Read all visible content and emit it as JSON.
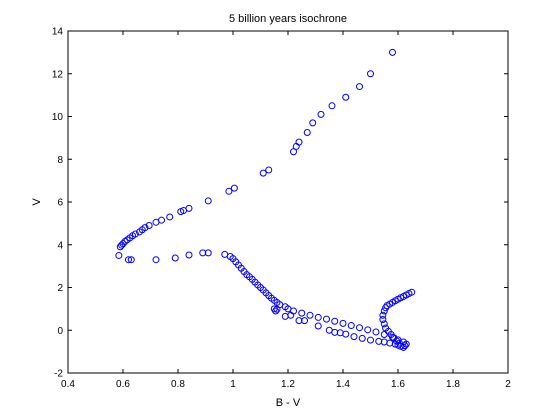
{
  "chart_data": {
    "type": "scatter",
    "title": "5 billion years isochrone",
    "xlabel": "B - V",
    "ylabel": "V",
    "xlim": [
      0.4,
      2
    ],
    "ylim": [
      -2,
      14
    ],
    "xticks": [
      0.4,
      0.6,
      0.8,
      1,
      1.2,
      1.4,
      1.6,
      1.8,
      2
    ],
    "yticks": [
      -2,
      0,
      2,
      4,
      6,
      8,
      10,
      12,
      14
    ],
    "xtick_labels": [
      "0.4",
      "0.6",
      "0.8",
      "1",
      "1.2",
      "1.4",
      "1.6",
      "1.8",
      "2"
    ],
    "ytick_labels": [
      "-2",
      "0",
      "2",
      "4",
      "6",
      "8",
      "10",
      "12",
      "14"
    ],
    "grid": false,
    "marker": "open-circle",
    "marker_color": "#0000ff",
    "series": [
      {
        "points": [
          [
            1.58,
            13.0
          ],
          [
            1.5,
            12.0
          ],
          [
            1.46,
            11.4
          ],
          [
            1.41,
            10.9
          ],
          [
            1.36,
            10.5
          ],
          [
            1.32,
            10.1
          ],
          [
            1.29,
            9.7
          ],
          [
            1.27,
            9.25
          ],
          [
            1.24,
            8.8
          ],
          [
            1.23,
            8.6
          ],
          [
            1.22,
            8.35
          ],
          [
            1.13,
            7.5
          ],
          [
            1.11,
            7.35
          ],
          [
            1.005,
            6.65
          ],
          [
            0.985,
            6.5
          ],
          [
            0.91,
            6.05
          ],
          [
            0.84,
            5.7
          ],
          [
            0.82,
            5.6
          ],
          [
            0.81,
            5.55
          ],
          [
            0.77,
            5.3
          ],
          [
            0.74,
            5.15
          ],
          [
            0.72,
            5.05
          ],
          [
            0.695,
            4.9
          ],
          [
            0.68,
            4.8
          ],
          [
            0.67,
            4.7
          ],
          [
            0.66,
            4.6
          ],
          [
            0.645,
            4.5
          ],
          [
            0.635,
            4.42
          ],
          [
            0.625,
            4.32
          ],
          [
            0.615,
            4.23
          ],
          [
            0.607,
            4.15
          ],
          [
            0.6,
            4.05
          ],
          [
            0.595,
            3.98
          ],
          [
            0.59,
            3.9
          ],
          [
            0.585,
            3.5
          ],
          [
            0.62,
            3.3
          ],
          [
            0.63,
            3.3
          ],
          [
            0.72,
            3.3
          ],
          [
            0.79,
            3.38
          ],
          [
            0.84,
            3.52
          ],
          [
            0.89,
            3.62
          ],
          [
            0.91,
            3.62
          ],
          [
            0.97,
            3.55
          ],
          [
            0.99,
            3.45
          ],
          [
            1.0,
            3.35
          ],
          [
            1.01,
            3.2
          ],
          [
            1.02,
            3.05
          ],
          [
            1.03,
            2.9
          ],
          [
            1.04,
            2.75
          ],
          [
            1.05,
            2.6
          ],
          [
            1.06,
            2.5
          ],
          [
            1.07,
            2.38
          ],
          [
            1.08,
            2.25
          ],
          [
            1.09,
            2.12
          ],
          [
            1.1,
            2.0
          ],
          [
            1.11,
            1.88
          ],
          [
            1.12,
            1.75
          ],
          [
            1.13,
            1.62
          ],
          [
            1.14,
            1.5
          ],
          [
            1.15,
            1.4
          ],
          [
            1.16,
            1.3
          ],
          [
            1.17,
            1.2
          ],
          [
            1.19,
            1.1
          ],
          [
            1.2,
            1.0
          ],
          [
            1.22,
            0.9
          ],
          [
            1.25,
            0.8
          ],
          [
            1.28,
            0.7
          ],
          [
            1.31,
            0.6
          ],
          [
            1.34,
            0.52
          ],
          [
            1.37,
            0.42
          ],
          [
            1.4,
            0.32
          ],
          [
            1.43,
            0.22
          ],
          [
            1.46,
            0.12
          ],
          [
            1.49,
            0.02
          ],
          [
            1.52,
            -0.08
          ],
          [
            1.55,
            -0.2
          ],
          [
            1.58,
            -0.32
          ],
          [
            1.6,
            -0.45
          ],
          [
            1.62,
            -0.55
          ],
          [
            1.63,
            -0.65
          ],
          [
            1.625,
            -0.72
          ],
          [
            1.62,
            -0.8
          ],
          [
            1.15,
            1.0
          ],
          [
            1.155,
            0.9
          ],
          [
            1.16,
            0.98
          ],
          [
            1.19,
            0.65
          ],
          [
            1.21,
            0.7
          ],
          [
            1.24,
            0.45
          ],
          [
            1.26,
            0.45
          ],
          [
            1.31,
            0.2
          ],
          [
            1.35,
            0.0
          ],
          [
            1.37,
            -0.1
          ],
          [
            1.39,
            -0.12
          ],
          [
            1.41,
            -0.18
          ],
          [
            1.44,
            -0.3
          ],
          [
            1.47,
            -0.38
          ],
          [
            1.5,
            -0.46
          ],
          [
            1.53,
            -0.52
          ],
          [
            1.55,
            -0.55
          ],
          [
            1.57,
            -0.6
          ],
          [
            1.59,
            -0.65
          ],
          [
            1.6,
            -0.7
          ],
          [
            1.61,
            -0.75
          ],
          [
            1.605,
            -0.6
          ],
          [
            1.595,
            -0.5
          ],
          [
            1.585,
            -0.35
          ],
          [
            1.575,
            -0.2
          ],
          [
            1.565,
            -0.05
          ],
          [
            1.555,
            0.1
          ],
          [
            1.55,
            0.3
          ],
          [
            1.545,
            0.5
          ],
          [
            1.545,
            0.7
          ],
          [
            1.55,
            0.9
          ],
          [
            1.555,
            1.05
          ],
          [
            1.56,
            1.15
          ],
          [
            1.57,
            1.22
          ],
          [
            1.58,
            1.3
          ],
          [
            1.59,
            1.38
          ],
          [
            1.6,
            1.45
          ],
          [
            1.61,
            1.52
          ],
          [
            1.62,
            1.58
          ],
          [
            1.63,
            1.65
          ],
          [
            1.64,
            1.72
          ],
          [
            1.65,
            1.78
          ]
        ]
      }
    ]
  }
}
